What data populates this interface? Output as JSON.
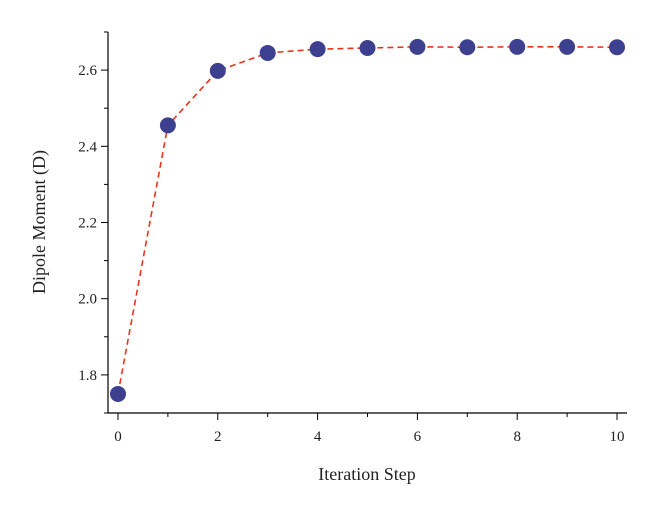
{
  "chart_data": {
    "type": "line",
    "title": "",
    "xlabel": "Iteration Step",
    "ylabel": "Dipole Moment (D)",
    "x": [
      0,
      1,
      2,
      3,
      4,
      5,
      6,
      7,
      8,
      9,
      10
    ],
    "series": [
      {
        "values": [
          1.75,
          2.455,
          2.598,
          2.645,
          2.655,
          2.658,
          2.661,
          2.66,
          2.661,
          2.661,
          2.66
        ],
        "line_color": "#e8361e",
        "line_style": "dashed",
        "marker_color": "#3d3f8f",
        "marker": "circle"
      }
    ],
    "xlim": [
      -0.2,
      10.2
    ],
    "ylim": [
      1.7,
      2.7
    ],
    "xticks": [
      0,
      2,
      4,
      6,
      8,
      10
    ],
    "xtick_labels": [
      "0",
      "2",
      "4",
      "6",
      "8",
      "10"
    ],
    "yticks": [
      1.8,
      2.0,
      2.2,
      2.4,
      2.6
    ],
    "ytick_labels": [
      "1.8",
      "2.0",
      "2.2",
      "2.4",
      "2.6"
    ],
    "x_minor_step": 1,
    "y_minor_step": 0.1,
    "grid": false,
    "legend": "none"
  }
}
